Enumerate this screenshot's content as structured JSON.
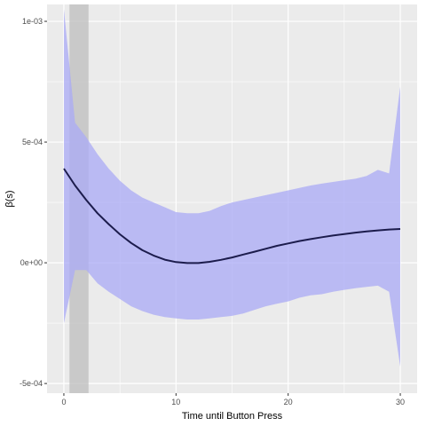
{
  "chart_data": {
    "type": "line",
    "title": "",
    "xlabel": "Time until Button Press",
    "ylabel": "β(s)",
    "xlim": [
      -1.5,
      31.5
    ],
    "ylim": [
      -0.00054,
      0.00107
    ],
    "x_ticks": [
      0,
      10,
      20,
      30
    ],
    "y_ticks": [
      -0.0005,
      0,
      0.0005,
      0.001
    ],
    "y_tick_labels": [
      "-5e-04",
      "0e+00",
      "5e-04",
      "1e-03"
    ],
    "grid": true,
    "shaded_region": {
      "x_start": 0.5,
      "x_end": 2.2
    },
    "series": [
      {
        "x": [
          0,
          1,
          2,
          3,
          4,
          5,
          6,
          7,
          8,
          9,
          10,
          11,
          12,
          13,
          14,
          15,
          16,
          17,
          18,
          19,
          20,
          21,
          22,
          23,
          24,
          25,
          26,
          27,
          28,
          29,
          30
        ],
        "y": [
          0.00039,
          0.00032,
          0.00026,
          0.000205,
          0.00016,
          0.000118,
          8.2e-05,
          5.2e-05,
          3e-05,
          1.3e-05,
          3e-06,
          -1e-06,
          -1e-06,
          4e-06,
          1.2e-05,
          2.2e-05,
          3.4e-05,
          4.6e-05,
          5.8e-05,
          7e-05,
          8e-05,
          9e-05,
          9.8e-05,
          0.000106,
          0.000113,
          0.000119,
          0.000125,
          0.00013,
          0.000134,
          0.000138,
          0.00014
        ],
        "lower": [
          -0.00025,
          -3e-05,
          -3e-05,
          -8.5e-05,
          -0.00012,
          -0.00015,
          -0.00018,
          -0.0002,
          -0.000215,
          -0.000225,
          -0.00023,
          -0.000235,
          -0.000235,
          -0.00023,
          -0.000225,
          -0.00022,
          -0.00021,
          -0.000195,
          -0.00018,
          -0.00017,
          -0.00016,
          -0.000145,
          -0.000135,
          -0.00013,
          -0.00012,
          -0.000112,
          -0.000105,
          -0.0001,
          -9.5e-05,
          -0.00012,
          -0.00043
        ],
        "upper": [
          0.00105,
          0.00058,
          0.00052,
          0.00045,
          0.00039,
          0.00034,
          0.0003,
          0.00027,
          0.00025,
          0.00023,
          0.00021,
          0.000205,
          0.000205,
          0.000215,
          0.000235,
          0.00025,
          0.00026,
          0.00027,
          0.00028,
          0.00029,
          0.0003,
          0.00031,
          0.00032,
          0.000328,
          0.000335,
          0.000342,
          0.000348,
          0.00036,
          0.000385,
          0.00037,
          0.00073
        ]
      }
    ]
  },
  "colors": {
    "panel_bg": "#ebebeb",
    "grid_major": "#ffffff",
    "band_fill": "#aaaaf5",
    "line": "#1c1c4c",
    "shade": "#bdbdbd"
  }
}
